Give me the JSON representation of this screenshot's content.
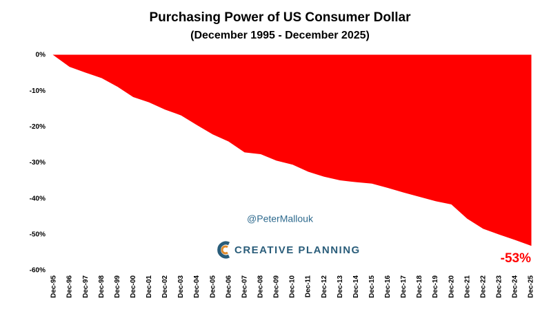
{
  "chart_data": {
    "type": "area",
    "title": "Purchasing Power of US Consumer Dollar",
    "subtitle": "(December 1995 - December 2025)",
    "categories": [
      "Dec-95",
      "Dec-96",
      "Dec-97",
      "Dec-98",
      "Dec-99",
      "Dec-00",
      "Dec-01",
      "Dec-02",
      "Dec-03",
      "Dec-04",
      "Dec-05",
      "Dec-06",
      "Dec-07",
      "Dec-08",
      "Dec-09",
      "Dec-10",
      "Dec-11",
      "Dec-12",
      "Dec-13",
      "Dec-14",
      "Dec-15",
      "Dec-16",
      "Dec-17",
      "Dec-18",
      "Dec-19",
      "Dec-20",
      "Dec-21",
      "Dec-22",
      "Dec-23",
      "Dec-24",
      "Dec-25"
    ],
    "values": [
      0,
      -3.2,
      -4.8,
      -6.3,
      -8.7,
      -11.6,
      -13.1,
      -15.1,
      -16.7,
      -19.4,
      -22.0,
      -24.0,
      -27.0,
      -27.5,
      -29.3,
      -30.4,
      -32.4,
      -33.8,
      -34.8,
      -35.3,
      -35.7,
      -36.9,
      -38.2,
      -39.4,
      -40.6,
      -41.5,
      -45.5,
      -48.3,
      -49.9,
      -51.4,
      -53
    ],
    "color": "#ff0000",
    "ylim": [
      -60,
      0
    ],
    "yticks": [
      {
        "value": -60,
        "label": "-60%"
      },
      {
        "value": -50,
        "label": "-50%"
      },
      {
        "value": -40,
        "label": "-40%"
      },
      {
        "value": -30,
        "label": "-30%"
      },
      {
        "value": -20,
        "label": "-20%"
      },
      {
        "value": -10,
        "label": "-10%"
      },
      {
        "value": 0,
        "label": "0%"
      }
    ],
    "grid": false,
    "annotations": [
      {
        "text": "-53%",
        "color": "#ff0000"
      }
    ],
    "watermark": "@PeterMallouk",
    "brand": "CREATIVE PLANNING"
  }
}
